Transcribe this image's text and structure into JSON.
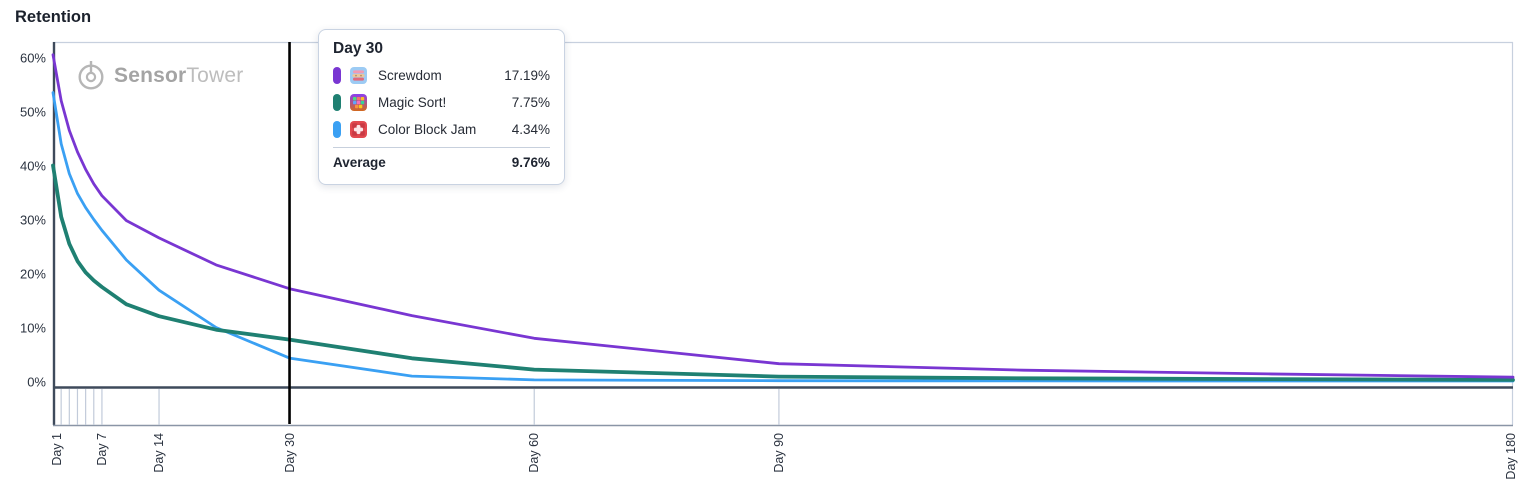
{
  "page": {
    "title": "Retention"
  },
  "watermark": {
    "brand_bold": "Sensor",
    "brand_light": "Tower",
    "icon": "sensor-tower-logo-icon",
    "color": "#b3b3b3"
  },
  "colors": {
    "purple": "#7936d2",
    "teal": "#1f8072",
    "blue": "#3aa0f3",
    "axis_dark": "#3e4a5b",
    "tick_light": "#c2cbda",
    "band_border": "#8a95a6",
    "plot_border_light": "#c7d0de",
    "cursor": "#000000"
  },
  "chart_data": {
    "type": "line",
    "title": "Retention",
    "x_unit": "day",
    "x_axis_linear_range": [
      1,
      180
    ],
    "ylim_pct": [
      0,
      62
    ],
    "grid": "off",
    "legend_position": "tooltip",
    "y_ticks": [
      {
        "pct": 60,
        "label": "60%"
      },
      {
        "pct": 50,
        "label": "50%"
      },
      {
        "pct": 40,
        "label": "40%"
      },
      {
        "pct": 30,
        "label": "30%"
      },
      {
        "pct": 20,
        "label": "20%"
      },
      {
        "pct": 10,
        "label": "10%"
      },
      {
        "pct": 0,
        "label": "0%"
      }
    ],
    "x_tick_labels": [
      {
        "day": 1,
        "label": "Day 1"
      },
      {
        "day": 7,
        "label": "Day 7"
      },
      {
        "day": 14,
        "label": "Day 14"
      },
      {
        "day": 30,
        "label": "Day 30"
      },
      {
        "day": 60,
        "label": "Day 60"
      },
      {
        "day": 90,
        "label": "Day 90"
      },
      {
        "day": 180,
        "label": "Day 180"
      }
    ],
    "minor_tick_days": [
      2,
      3,
      4,
      5,
      6,
      7
    ],
    "major_tick_days": [
      14,
      60,
      90
    ],
    "cursor_day": 30,
    "series": [
      {
        "name": "Color Block Jam",
        "color": "#3aa0f3",
        "icon": "color-block-jam-icon",
        "line_width": 2.8,
        "points": [
          [
            1,
            53.5
          ],
          [
            2,
            44
          ],
          [
            3,
            38.5
          ],
          [
            4,
            34.8
          ],
          [
            5,
            32.2
          ],
          [
            6,
            30
          ],
          [
            7,
            28
          ],
          [
            10,
            22.5
          ],
          [
            14,
            16.9
          ],
          [
            21,
            10
          ],
          [
            30,
            4.34
          ],
          [
            45,
            1.0
          ],
          [
            60,
            0.3
          ],
          [
            90,
            0.15
          ],
          [
            120,
            0.12
          ],
          [
            150,
            0.1
          ],
          [
            180,
            0.1
          ]
        ]
      },
      {
        "name": "Magic Sort!",
        "color": "#1f8072",
        "icon": "magic-sort-icon",
        "line_width": 3.8,
        "points": [
          [
            1,
            40
          ],
          [
            2,
            30.5
          ],
          [
            3,
            25.5
          ],
          [
            4,
            22.3
          ],
          [
            5,
            20.2
          ],
          [
            6,
            18.7
          ],
          [
            7,
            17.5
          ],
          [
            10,
            14.3
          ],
          [
            14,
            12.1
          ],
          [
            21,
            9.6
          ],
          [
            30,
            7.75
          ],
          [
            45,
            4.3
          ],
          [
            60,
            2.2
          ],
          [
            90,
            0.9
          ],
          [
            120,
            0.6
          ],
          [
            150,
            0.45
          ],
          [
            180,
            0.3
          ]
        ]
      },
      {
        "name": "Screwdom",
        "color": "#7936d2",
        "icon": "screwdom-icon",
        "line_width": 2.8,
        "points": [
          [
            1,
            60.5
          ],
          [
            2,
            52
          ],
          [
            3,
            46.5
          ],
          [
            4,
            42.5
          ],
          [
            5,
            39.3
          ],
          [
            6,
            36.6
          ],
          [
            7,
            34.4
          ],
          [
            10,
            29.8
          ],
          [
            14,
            26.6
          ],
          [
            21,
            21.6
          ],
          [
            30,
            17.19
          ],
          [
            45,
            12.2
          ],
          [
            60,
            8.0
          ],
          [
            90,
            3.3
          ],
          [
            120,
            2.1
          ],
          [
            150,
            1.4
          ],
          [
            180,
            0.8
          ]
        ]
      }
    ]
  },
  "tooltip": {
    "header": "Day 30",
    "rows": [
      {
        "name": "Screwdom",
        "value": "17.19%",
        "swatch": "#7936d2",
        "icon": "screwdom-icon"
      },
      {
        "name": "Magic Sort!",
        "value": "7.75%",
        "swatch": "#1f8072",
        "icon": "magic-sort-icon"
      },
      {
        "name": "Color Block Jam",
        "value": "4.34%",
        "swatch": "#3aa0f3",
        "icon": "color-block-jam-icon"
      }
    ],
    "average_label": "Average",
    "average_value": "9.76%"
  }
}
